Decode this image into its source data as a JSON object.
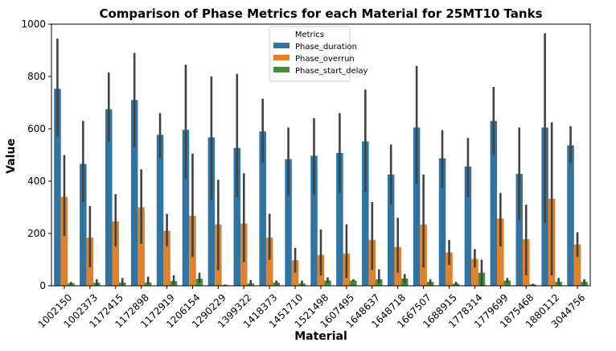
{
  "chart_data": {
    "type": "bar",
    "title": "Comparison of Phase Metrics for each Material for 25MT10 Tanks",
    "xlabel": "Material",
    "ylabel": "Value",
    "ylim": [
      0,
      1000
    ],
    "yticks": [
      0,
      200,
      400,
      600,
      800,
      1000
    ],
    "grid": false,
    "legend": {
      "title": "Metrics",
      "placement": "top-center"
    },
    "categories": [
      "1002150",
      "1002373",
      "1172415",
      "1172898",
      "1172919",
      "1206154",
      "1290229",
      "1399322",
      "1418373",
      "1451710",
      "1521498",
      "1607495",
      "1648637",
      "1648718",
      "1667507",
      "1688915",
      "1778314",
      "1779699",
      "1875468",
      "1880112",
      "3044756"
    ],
    "series": [
      {
        "name": "Phase_duration",
        "color": "#3274a1",
        "values": [
          753,
          466,
          675,
          710,
          577,
          596,
          567,
          527,
          590,
          484,
          497,
          508,
          552,
          425,
          605,
          487,
          456,
          630,
          428,
          605,
          537
        ],
        "ci_low": [
          570,
          320,
          550,
          530,
          490,
          410,
          330,
          340,
          470,
          345,
          350,
          355,
          360,
          310,
          390,
          375,
          340,
          500,
          250,
          240,
          470
        ],
        "ci_high": [
          945,
          630,
          815,
          890,
          660,
          845,
          800,
          810,
          715,
          605,
          640,
          660,
          750,
          540,
          840,
          595,
          565,
          760,
          605,
          965,
          610
        ]
      },
      {
        "name": "Phase_overrun",
        "color": "#e1812c",
        "values": [
          340,
          184,
          246,
          300,
          210,
          268,
          234,
          238,
          184,
          98,
          118,
          123,
          175,
          148,
          234,
          127,
          103,
          257,
          178,
          333,
          158
        ],
        "ci_low": [
          190,
          70,
          150,
          160,
          150,
          110,
          60,
          90,
          100,
          50,
          40,
          30,
          60,
          50,
          70,
          80,
          70,
          150,
          40,
          40,
          110
        ],
        "ci_high": [
          500,
          305,
          350,
          445,
          275,
          505,
          405,
          430,
          275,
          145,
          215,
          235,
          320,
          260,
          425,
          175,
          140,
          355,
          310,
          625,
          205
        ]
      },
      {
        "name": "Phase_start_delay",
        "color": "#3a923a",
        "values": [
          10,
          12,
          12,
          13,
          18,
          27,
          3,
          9,
          12,
          9,
          20,
          20,
          25,
          28,
          15,
          8,
          50,
          20,
          5,
          15,
          15
        ],
        "ci_low": [
          5,
          2,
          3,
          5,
          5,
          10,
          0,
          3,
          5,
          2,
          10,
          15,
          10,
          10,
          5,
          3,
          0,
          10,
          0,
          5,
          5
        ],
        "ci_high": [
          15,
          25,
          30,
          35,
          40,
          50,
          5,
          22,
          20,
          20,
          32,
          25,
          63,
          45,
          25,
          15,
          100,
          30,
          8,
          30,
          25
        ]
      }
    ]
  }
}
